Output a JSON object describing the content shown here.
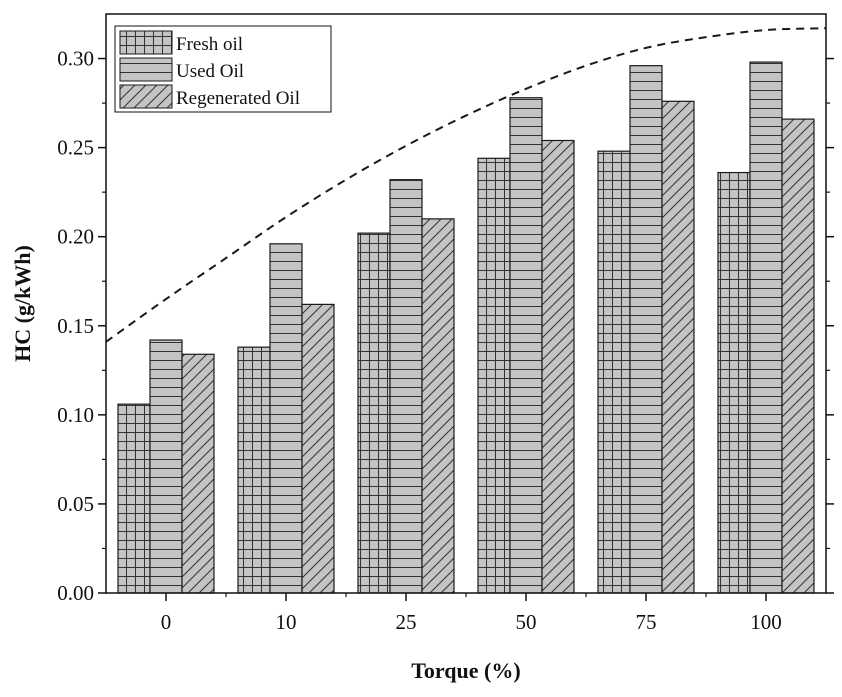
{
  "chart_data": {
    "type": "bar",
    "title": "",
    "xlabel": "Torque (%)",
    "ylabel": "HC (g/kWh)",
    "categories": [
      "0",
      "10",
      "25",
      "50",
      "75",
      "100"
    ],
    "ylim": [
      0,
      0.325
    ],
    "yticks": [
      "0.00",
      "0.05",
      "0.10",
      "0.15",
      "0.20",
      "0.25",
      "0.30"
    ],
    "series": [
      {
        "name": "Fresh oil",
        "pattern": "grid",
        "values": [
          0.106,
          0.138,
          0.202,
          0.244,
          0.248,
          0.236
        ]
      },
      {
        "name": "Used Oil",
        "pattern": "horizontal",
        "values": [
          0.142,
          0.196,
          0.232,
          0.278,
          0.296,
          0.298
        ]
      },
      {
        "name": "Regenerated Oil",
        "pattern": "diagonal",
        "values": [
          0.134,
          0.162,
          0.21,
          0.254,
          0.276,
          0.266
        ]
      }
    ],
    "trend_line": {
      "style": "dashed",
      "x": [
        -0.5,
        0.0,
        0.5,
        1.0,
        1.5,
        2.0,
        2.5,
        3.0,
        3.5,
        4.0,
        4.5,
        5.0,
        5.5
      ],
      "y": [
        0.141,
        0.165,
        0.188,
        0.211,
        0.232,
        0.251,
        0.268,
        0.283,
        0.296,
        0.306,
        0.312,
        0.316,
        0.317
      ]
    },
    "legend_position": "top-left",
    "bar_fill": "#c4c4c4",
    "bar_stroke": "#1a1a1a"
  }
}
